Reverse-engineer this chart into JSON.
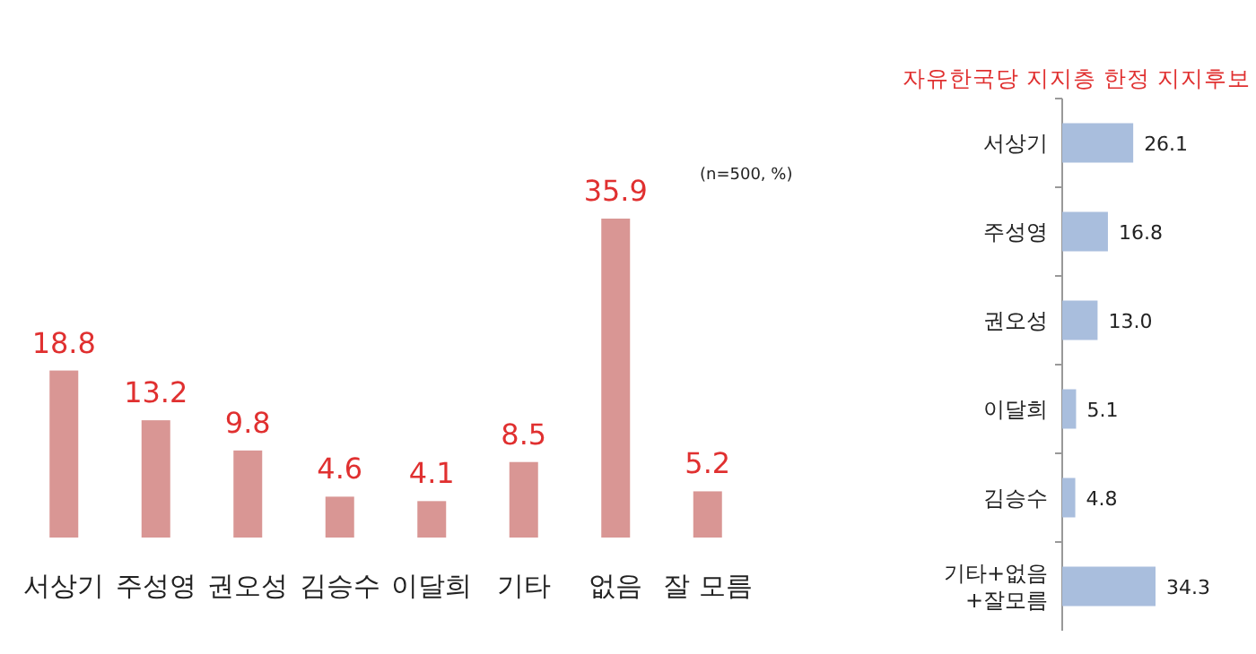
{
  "chart_data": [
    {
      "type": "bar",
      "categories": [
        "서상기",
        "주성영",
        "권오성",
        "김승수",
        "이달희",
        "기타",
        "없음",
        "잘 모름"
      ],
      "values": [
        18.8,
        13.2,
        9.8,
        4.6,
        4.1,
        8.5,
        35.9,
        5.2
      ],
      "color": "#d99694",
      "data_labels": true,
      "annotations": [
        "(n=500, %)"
      ]
    },
    {
      "type": "bar",
      "orientation": "horizontal",
      "title": "자유한국당 지지층 한정 지지후보",
      "categories": [
        "서상기",
        "주성영",
        "권오성",
        "이달희",
        "김승수",
        "기타+없음+잘모름"
      ],
      "values": [
        26.1,
        16.8,
        13.0,
        5.1,
        4.8,
        34.3
      ],
      "value_labels": [
        "26.1",
        "16.8",
        "13.0",
        "5.1",
        "4.8",
        "34.3"
      ],
      "color": "#a9bedd"
    }
  ]
}
